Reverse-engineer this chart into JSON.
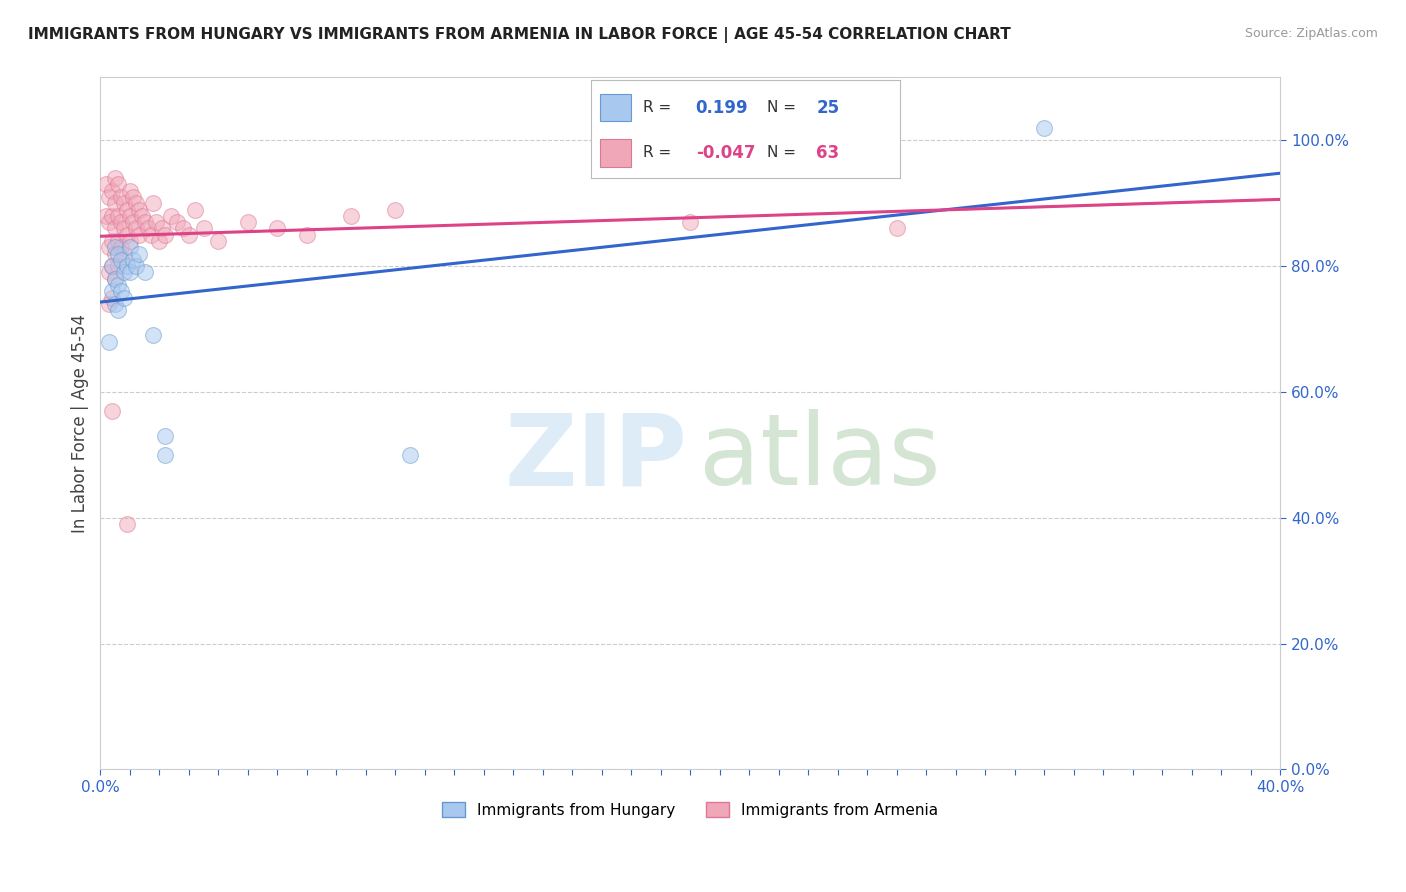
{
  "title": "IMMIGRANTS FROM HUNGARY VS IMMIGRANTS FROM ARMENIA IN LABOR FORCE | AGE 45-54 CORRELATION CHART",
  "source": "Source: ZipAtlas.com",
  "ylabel": "In Labor Force | Age 45-54",
  "xlim": [
    0.0,
    0.4
  ],
  "ylim": [
    0.0,
    1.1
  ],
  "ytick_positions": [
    0.0,
    0.2,
    0.4,
    0.6,
    0.8,
    1.0
  ],
  "ytick_labels": [
    "0.0%",
    "20.0%",
    "40.0%",
    "60.0%",
    "80.0%",
    "100.0%"
  ],
  "grid_color": "#cccccc",
  "background_color": "#ffffff",
  "hungary_color": "#a8c8f0",
  "armenia_color": "#f0a8b8",
  "hungary_edge_color": "#6699cc",
  "armenia_edge_color": "#dd7799",
  "trend_hungary_color": "#3366cc",
  "trend_armenia_color": "#dd4488",
  "legend_r_hungary": "0.199",
  "legend_n_hungary": "25",
  "legend_r_armenia": "-0.047",
  "legend_n_armenia": "63",
  "hungary_x": [
    0.003,
    0.004,
    0.004,
    0.005,
    0.005,
    0.005,
    0.006,
    0.006,
    0.006,
    0.007,
    0.007,
    0.008,
    0.008,
    0.009,
    0.01,
    0.01,
    0.011,
    0.012,
    0.013,
    0.015,
    0.018,
    0.022,
    0.022,
    0.32,
    0.105
  ],
  "hungary_y": [
    0.68,
    0.8,
    0.76,
    0.83,
    0.78,
    0.74,
    0.82,
    0.77,
    0.73,
    0.81,
    0.76,
    0.79,
    0.75,
    0.8,
    0.83,
    0.79,
    0.81,
    0.8,
    0.82,
    0.79,
    0.69,
    0.5,
    0.53,
    1.02,
    0.5
  ],
  "armenia_x": [
    0.002,
    0.002,
    0.003,
    0.003,
    0.003,
    0.003,
    0.003,
    0.004,
    0.004,
    0.004,
    0.004,
    0.004,
    0.005,
    0.005,
    0.005,
    0.005,
    0.005,
    0.006,
    0.006,
    0.006,
    0.006,
    0.007,
    0.007,
    0.007,
    0.008,
    0.008,
    0.008,
    0.009,
    0.009,
    0.01,
    0.01,
    0.01,
    0.011,
    0.011,
    0.012,
    0.012,
    0.013,
    0.013,
    0.014,
    0.015,
    0.016,
    0.017,
    0.018,
    0.019,
    0.02,
    0.021,
    0.022,
    0.024,
    0.026,
    0.028,
    0.03,
    0.032,
    0.035,
    0.04,
    0.05,
    0.06,
    0.07,
    0.085,
    0.1,
    0.2,
    0.27,
    0.004,
    0.009
  ],
  "armenia_y": [
    0.93,
    0.88,
    0.91,
    0.87,
    0.83,
    0.79,
    0.74,
    0.92,
    0.88,
    0.84,
    0.8,
    0.75,
    0.94,
    0.9,
    0.86,
    0.82,
    0.78,
    0.93,
    0.88,
    0.84,
    0.8,
    0.91,
    0.87,
    0.83,
    0.9,
    0.86,
    0.82,
    0.89,
    0.85,
    0.92,
    0.88,
    0.84,
    0.91,
    0.87,
    0.9,
    0.86,
    0.89,
    0.85,
    0.88,
    0.87,
    0.86,
    0.85,
    0.9,
    0.87,
    0.84,
    0.86,
    0.85,
    0.88,
    0.87,
    0.86,
    0.85,
    0.89,
    0.86,
    0.84,
    0.87,
    0.86,
    0.85,
    0.88,
    0.89,
    0.87,
    0.86,
    0.57,
    0.39
  ],
  "marker_size": 130,
  "marker_alpha": 0.5,
  "figsize": [
    14.06,
    8.92
  ],
  "dpi": 100
}
